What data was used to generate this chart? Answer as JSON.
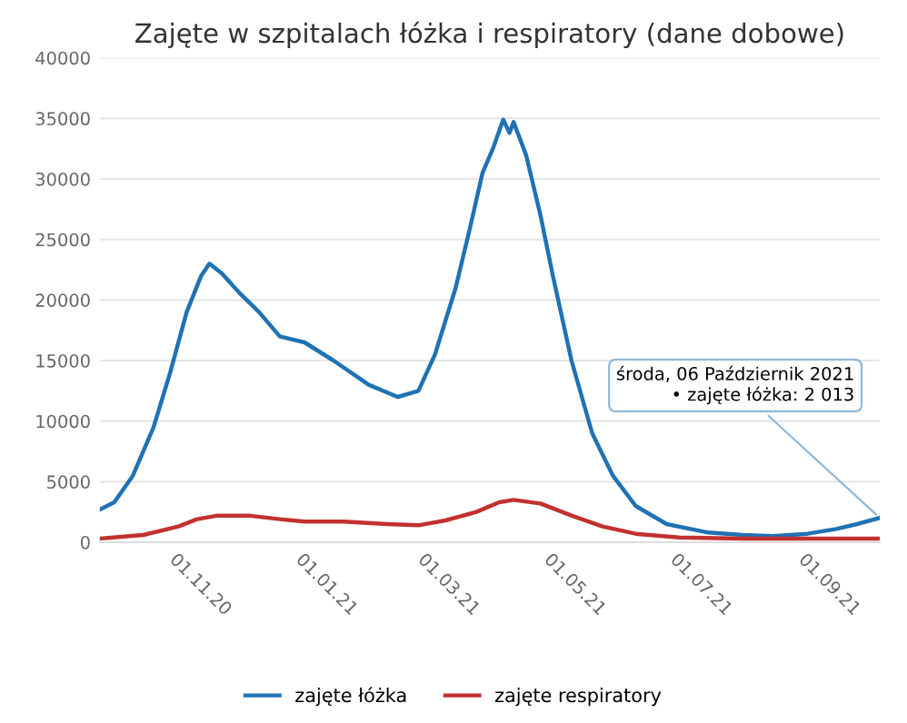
{
  "chart_data": {
    "type": "line",
    "title": "Zajęte w szpitalach łóżka i respiratory (dane dobowe)",
    "x": [
      "2020-09-24",
      "2020-10-01",
      "2020-10-10",
      "2020-10-20",
      "2020-10-28",
      "2020-11-05",
      "2020-11-12",
      "2020-11-16",
      "2020-11-22",
      "2020-12-01",
      "2020-12-10",
      "2020-12-20",
      "2021-01-01",
      "2021-01-15",
      "2021-02-01",
      "2021-02-15",
      "2021-02-25",
      "2021-03-05",
      "2021-03-15",
      "2021-03-22",
      "2021-03-28",
      "2021-04-02",
      "2021-04-07",
      "2021-04-10",
      "2021-04-12",
      "2021-04-18",
      "2021-04-25",
      "2021-05-01",
      "2021-05-10",
      "2021-05-20",
      "2021-05-30",
      "2021-06-10",
      "2021-06-25",
      "2021-07-15",
      "2021-08-01",
      "2021-08-15",
      "2021-09-01",
      "2021-09-15",
      "2021-09-25",
      "2021-10-06"
    ],
    "series": [
      {
        "name": "zajęte łóżka",
        "color": "#1f72b4",
        "values": [
          2700,
          3300,
          5500,
          9500,
          14000,
          19000,
          22000,
          23000,
          22200,
          20500,
          19000,
          17000,
          16500,
          15000,
          13000,
          12000,
          12500,
          15500,
          21000,
          26000,
          30500,
          32500,
          34900,
          33800,
          34700,
          32000,
          27000,
          22000,
          15000,
          9000,
          5500,
          3000,
          1500,
          800,
          600,
          500,
          700,
          1100,
          1500,
          2013
        ]
      },
      {
        "name": "zajęte respiratory",
        "color": "#c2312f",
        "x": [
          "2020-09-24",
          "2020-10-15",
          "2020-11-01",
          "2020-11-10",
          "2020-11-20",
          "2020-12-05",
          "2020-12-20",
          "2021-01-01",
          "2021-01-20",
          "2021-02-10",
          "2021-02-25",
          "2021-03-10",
          "2021-03-25",
          "2021-04-05",
          "2021-04-12",
          "2021-04-25",
          "2021-05-10",
          "2021-05-25",
          "2021-06-10",
          "2021-07-01",
          "2021-08-01",
          "2021-09-01",
          "2021-10-06"
        ],
        "values": [
          300,
          600,
          1300,
          1900,
          2200,
          2200,
          1900,
          1700,
          1700,
          1500,
          1400,
          1800,
          2500,
          3300,
          3500,
          3200,
          2200,
          1300,
          700,
          400,
          300,
          300,
          300
        ]
      }
    ],
    "xlim": [
      "2020-09-24",
      "2021-10-06"
    ],
    "xticks": [
      {
        "value": "2020-11-01",
        "label": "01.11.20"
      },
      {
        "value": "2021-01-01",
        "label": "01.01.21"
      },
      {
        "value": "2021-03-01",
        "label": "01.03.21"
      },
      {
        "value": "2021-05-01",
        "label": "01.05.21"
      },
      {
        "value": "2021-07-01",
        "label": "01.07.21"
      },
      {
        "value": "2021-09-01",
        "label": "01.09.21"
      }
    ],
    "ylim": [
      0,
      40000
    ],
    "yticks": [
      0,
      5000,
      10000,
      15000,
      20000,
      25000,
      30000,
      35000,
      40000
    ],
    "grid": "y",
    "legend": "bottom",
    "marker": "none",
    "line_style": "solid",
    "annotations": [
      {
        "text": "środa, 06 Październik 2021\n• zajęte łóżka: 2 013",
        "x": "2021-10-06",
        "y": 2013
      }
    ]
  }
}
